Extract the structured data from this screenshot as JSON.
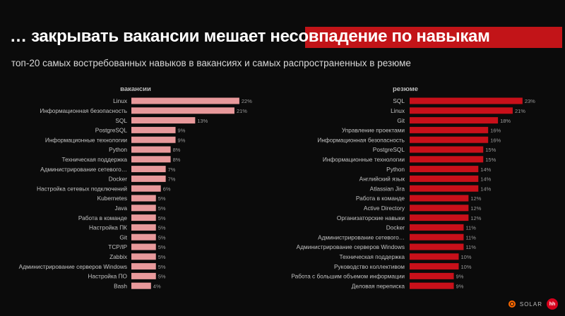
{
  "title": "… закрывать вакансии мешает несовпадение по навыкам",
  "subtitle": "топ-20 самых востребованных навыков в вакансиях и самых распространенных в резюме",
  "colors": {
    "vacancies": "#e8999b",
    "resumes": "#c8101a",
    "accent": "#c21418"
  },
  "brand": {
    "solar": "SOLAR",
    "hh": "hh",
    "icons": [
      "solar-icon",
      "hh-logo"
    ]
  },
  "chart_data": [
    {
      "type": "bar",
      "orientation": "horizontal",
      "title": "вакансии",
      "categories": [
        "Linux",
        "Информационная безопасность",
        "SQL",
        "PostgreSQL",
        "Информационные технологии",
        "Python",
        "Техническая поддержка",
        "Администрирование сетевого…",
        "Docker",
        "Настройка сетевых подключений",
        "Kubernetes",
        "Java",
        "Работа в команде",
        "Настройка ПК",
        "Git",
        "TCP/IP",
        "Zabbix",
        "Администрирование серверов Windows",
        "Настройка ПО",
        "Bash"
      ],
      "values": [
        22,
        21,
        13,
        9,
        9,
        8,
        8,
        7,
        7,
        6,
        5,
        5,
        5,
        5,
        5,
        5,
        5,
        5,
        5,
        4
      ],
      "unit": "%"
    },
    {
      "type": "bar",
      "orientation": "horizontal",
      "title": "резюме",
      "categories": [
        "SQL",
        "Linux",
        "Git",
        "Управление проектами",
        "Информационная безопасность",
        "PostgreSQL",
        "Информационные технологии",
        "Python",
        "Английский язык",
        "Atlassian Jira",
        "Работа в команде",
        "Active Directory",
        "Организаторские навыки",
        "Docker",
        "Администрирование сетевого…",
        "Администрирование серверов Windows",
        "Техническая поддержка",
        "Руководство коллективом",
        "Работа с большим объемом информации",
        "Деловая переписка"
      ],
      "values": [
        23,
        21,
        18,
        16,
        16,
        15,
        15,
        14,
        14,
        14,
        12,
        12,
        12,
        11,
        11,
        11,
        10,
        10,
        9,
        9
      ],
      "unit": "%"
    }
  ]
}
